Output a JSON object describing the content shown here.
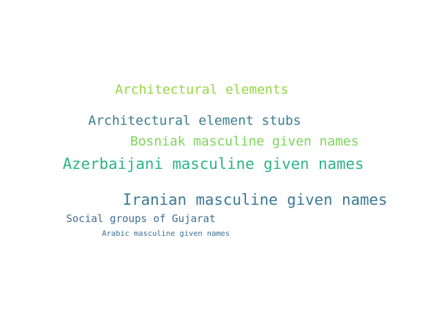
{
  "words": [
    {
      "text": "Architectural elements",
      "color": "#95d745"
    },
    {
      "text": "Architectural element stubs",
      "color": "#3b7f93"
    },
    {
      "text": "Bosniak masculine given names",
      "color": "#7cd55a"
    },
    {
      "text": "Azerbaijani masculine given names",
      "color": "#2fb489"
    },
    {
      "text": "Iranian masculine given names",
      "color": "#3c7a95"
    },
    {
      "text": "Social groups of Gujarat",
      "color": "#3f6d94"
    },
    {
      "text": "Arabic masculine given names",
      "color": "#3a7096"
    }
  ]
}
